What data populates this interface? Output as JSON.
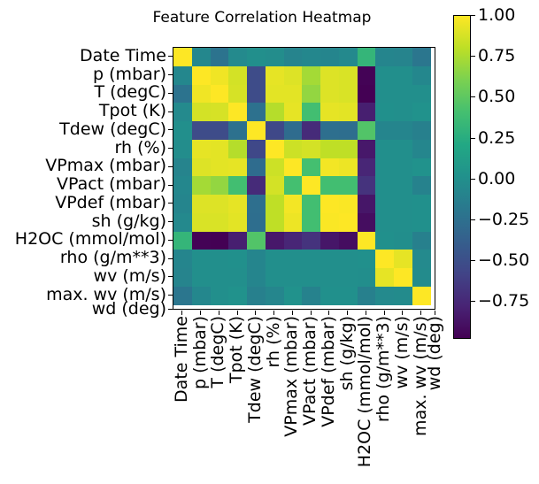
{
  "title": "Feature Correlation Heatmap",
  "colors": {
    "background": "#ffffff",
    "axes_border": "#000000",
    "tick_color": "#000000",
    "nan_cell": "#ffffff"
  },
  "chart_data": {
    "type": "heatmap",
    "title": "Feature Correlation Heatmap",
    "colormap": "viridis",
    "vmin": -0.97,
    "vmax": 1.0,
    "grid": false,
    "note": "wd (deg) row and column contain no data (rendered white/NaN)",
    "labels": [
      "Date Time",
      "p (mbar)",
      "T (degC)",
      "Tpot (K)",
      "Tdew (degC)",
      "rh (%)",
      "VPmax (mbar)",
      "VPact (mbar)",
      "VPdef (mbar)",
      "sh (g/kg)",
      "H2OC (mmol/mol)",
      "rho (g/m**3)",
      "wv (m/s)",
      "max. wv (m/s)",
      "wd (deg)"
    ],
    "matrix": [
      [
        1.0,
        -0.06,
        -0.22,
        -0.04,
        0.0,
        -0.02,
        -0.09,
        -0.06,
        -0.08,
        -0.05,
        0.32,
        -0.08,
        -0.09,
        -0.2,
        null
      ],
      [
        -0.06,
        1.0,
        0.96,
        0.87,
        -0.52,
        0.93,
        0.9,
        0.73,
        0.9,
        0.89,
        -0.96,
        0.0,
        0.0,
        -0.06,
        null
      ],
      [
        -0.22,
        0.96,
        1.0,
        0.88,
        -0.52,
        0.92,
        0.92,
        0.68,
        0.9,
        0.89,
        -0.97,
        0.0,
        0.0,
        0.0,
        null
      ],
      [
        -0.04,
        0.87,
        0.88,
        1.0,
        -0.24,
        0.78,
        0.93,
        0.4,
        0.93,
        0.92,
        -0.8,
        0.01,
        0.0,
        0.02,
        null
      ],
      [
        0.0,
        -0.52,
        -0.52,
        -0.24,
        1.0,
        -0.55,
        -0.28,
        -0.73,
        -0.25,
        -0.26,
        0.46,
        -0.08,
        -0.08,
        -0.12,
        null
      ],
      [
        -0.02,
        0.93,
        0.92,
        0.78,
        -0.55,
        1.0,
        0.85,
        0.87,
        0.81,
        0.81,
        -0.84,
        0.0,
        0.0,
        -0.07,
        null
      ],
      [
        -0.09,
        0.9,
        0.92,
        0.93,
        -0.28,
        0.85,
        1.0,
        0.41,
        0.97,
        0.95,
        -0.76,
        0.0,
        0.0,
        0.02,
        null
      ],
      [
        -0.06,
        0.73,
        0.68,
        0.4,
        -0.73,
        0.87,
        0.41,
        1.0,
        0.4,
        0.4,
        -0.68,
        0.0,
        0.0,
        -0.1,
        null
      ],
      [
        -0.08,
        0.9,
        0.9,
        0.93,
        -0.25,
        0.81,
        0.97,
        0.4,
        1.0,
        0.99,
        -0.85,
        0.0,
        0.0,
        0.01,
        null
      ],
      [
        -0.05,
        0.89,
        0.89,
        0.92,
        -0.26,
        0.81,
        0.95,
        0.4,
        0.99,
        1.0,
        -0.9,
        0.0,
        0.0,
        0.01,
        null
      ],
      [
        0.32,
        -0.96,
        -0.97,
        -0.8,
        0.46,
        -0.84,
        -0.76,
        -0.68,
        -0.85,
        -0.9,
        1.0,
        0.01,
        -0.01,
        -0.12,
        null
      ],
      [
        -0.08,
        0.0,
        0.0,
        0.01,
        -0.08,
        0.0,
        0.0,
        0.0,
        0.0,
        0.0,
        0.01,
        1.0,
        0.93,
        -0.04,
        null
      ],
      [
        -0.09,
        0.0,
        0.0,
        0.0,
        -0.08,
        0.0,
        0.0,
        0.0,
        0.0,
        0.0,
        -0.01,
        0.93,
        1.0,
        -0.03,
        null
      ],
      [
        -0.2,
        -0.06,
        0.0,
        0.02,
        -0.12,
        -0.07,
        0.02,
        -0.1,
        0.01,
        0.01,
        -0.12,
        -0.04,
        -0.03,
        1.0,
        null
      ],
      [
        null,
        null,
        null,
        null,
        null,
        null,
        null,
        null,
        null,
        null,
        null,
        null,
        null,
        null,
        null
      ]
    ],
    "viridis_stops": [
      [
        0.0,
        "#440154"
      ],
      [
        0.1,
        "#482475"
      ],
      [
        0.2,
        "#414487"
      ],
      [
        0.3,
        "#355f8d"
      ],
      [
        0.4,
        "#2a788e"
      ],
      [
        0.5,
        "#21918c"
      ],
      [
        0.6,
        "#22a884"
      ],
      [
        0.7,
        "#44bf70"
      ],
      [
        0.8,
        "#7ad151"
      ],
      [
        0.9,
        "#bddf26"
      ],
      [
        1.0,
        "#fde725"
      ]
    ],
    "colorbar": {
      "tick_labels": [
        "1.00",
        "0.75",
        "0.50",
        "0.25",
        "0.00",
        "−0.25",
        "−0.50",
        "−0.75"
      ],
      "tick_values": [
        1.0,
        0.75,
        0.5,
        0.25,
        0.0,
        -0.25,
        -0.5,
        -0.75
      ],
      "position": "right"
    }
  }
}
